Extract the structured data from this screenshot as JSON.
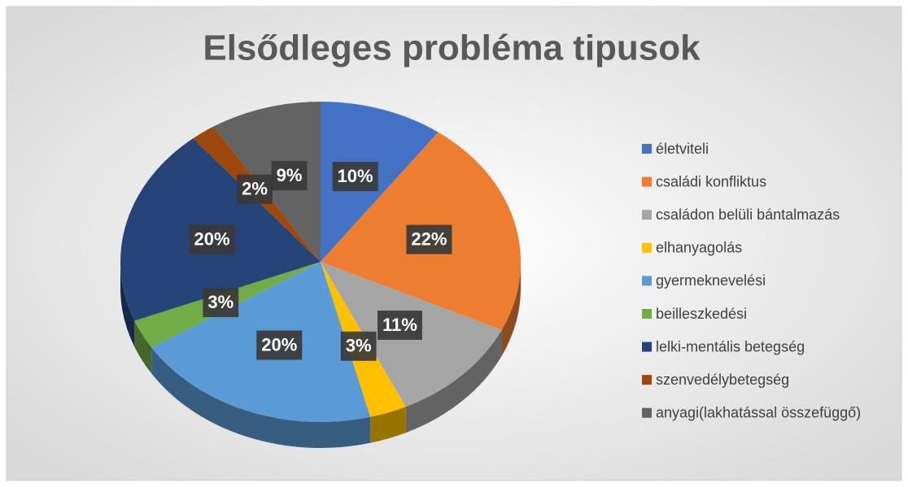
{
  "chart_data": {
    "type": "pie",
    "title": "Elsődleges probléma tipusok",
    "categories": [
      "életviteli",
      "családi konfliktus",
      "családon belüli bántalmazás",
      "elhanyagolás",
      "gyermeknevelési",
      "beilleszkedési",
      "lelki-mentális betegség",
      "szenvedélybetegség",
      "anyagi(lakhatással összefüggő)"
    ],
    "values": [
      10,
      22,
      11,
      3,
      20,
      3,
      20,
      2,
      9
    ],
    "value_labels": [
      "10%",
      "22%",
      "11%",
      "3%",
      "20%",
      "3%",
      "20%",
      "2%",
      "9%"
    ],
    "colors": [
      "#4472c4",
      "#ed7d31",
      "#a5a5a5",
      "#ffc000",
      "#5b9bd5",
      "#70ad47",
      "#264478",
      "#9e480e",
      "#636363"
    ],
    "legend": "right"
  }
}
